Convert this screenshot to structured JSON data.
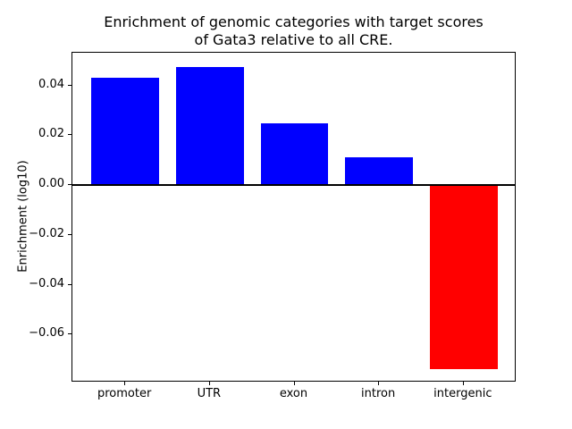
{
  "chart_data": {
    "type": "bar",
    "title": "Enrichment of genomic categories with target scores\nof Gata3 relative to all CRE.",
    "xlabel": "",
    "ylabel": "Enrichment (log10)",
    "categories": [
      "promoter",
      "UTR",
      "exon",
      "intron",
      "intergenic"
    ],
    "values": [
      0.0431,
      0.0474,
      0.0247,
      0.0113,
      -0.074
    ],
    "yticks": [
      0.04,
      0.02,
      0.0,
      -0.02,
      -0.04,
      -0.06
    ],
    "ytick_labels": [
      "0.04",
      "0.02",
      "0.00",
      "−0.02",
      "−0.04",
      "−0.06"
    ],
    "ylim": [
      -0.0793,
      0.0532
    ],
    "xlim": [
      -0.625,
      4.625
    ],
    "bar_width": 0.8,
    "positive_color": "#0000ff",
    "negative_color": "#ff0000",
    "zero_line": true,
    "grid": false,
    "legend": null,
    "background_color": "#ffffff",
    "spine_color": "#000000"
  }
}
